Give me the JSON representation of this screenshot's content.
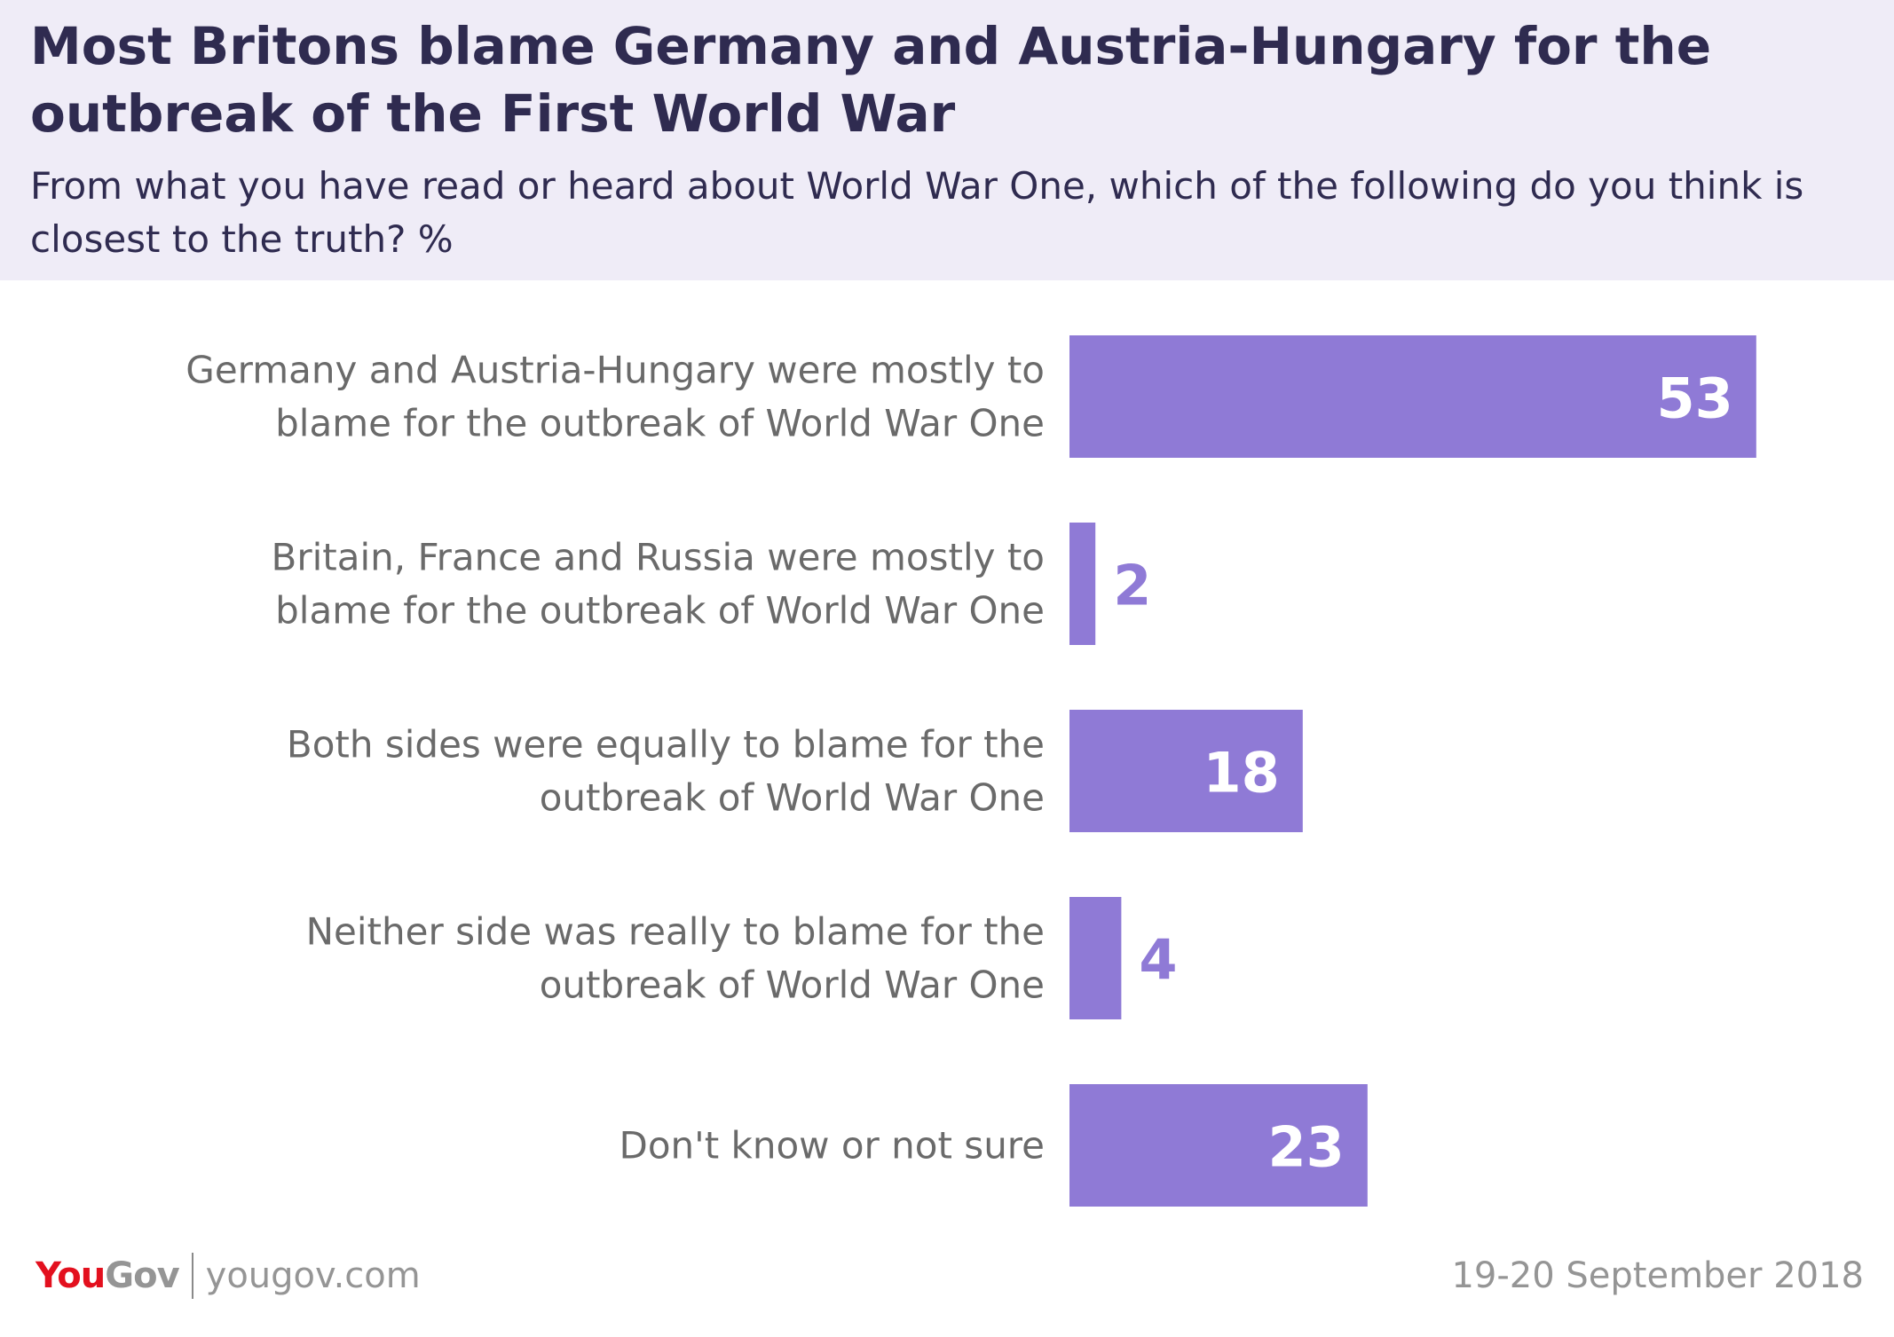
{
  "title": "Most Britons blame Germany and Austria-Hungary for the outbreak of the First World War",
  "subtitle": "From what you have read or heard about World War One, which of the following do you think is closest to the truth? %",
  "colors": {
    "header_bg": "#efecf7",
    "title_text": "#2f2b50",
    "bar": "#8f7ad6",
    "label_text": "#6a6a6a",
    "logo_red": "#e3101e",
    "footer_gray": "#959595"
  },
  "chart_data": {
    "type": "bar",
    "orientation": "horizontal",
    "categories": [
      [
        "Germany and Austria-Hungary were mostly to",
        "blame for the outbreak of World War One"
      ],
      [
        "Britain, France and Russia were mostly to",
        "blame for the outbreak of World War One"
      ],
      [
        "Both sides were equally to blame for the",
        "outbreak of World War One"
      ],
      [
        "Neither side was really to blame for the",
        "outbreak of World War One"
      ],
      [
        "Don't know or not sure"
      ]
    ],
    "values": [
      53,
      2,
      18,
      4,
      23
    ],
    "value_labels": [
      "53",
      "2",
      "18",
      "4",
      "23"
    ],
    "xlim": [
      0,
      60
    ],
    "grid": false,
    "legend": "none"
  },
  "footer": {
    "logo_you": "You",
    "logo_gov": "Gov",
    "site": "yougov.com",
    "date": "19-20 September 2018"
  }
}
